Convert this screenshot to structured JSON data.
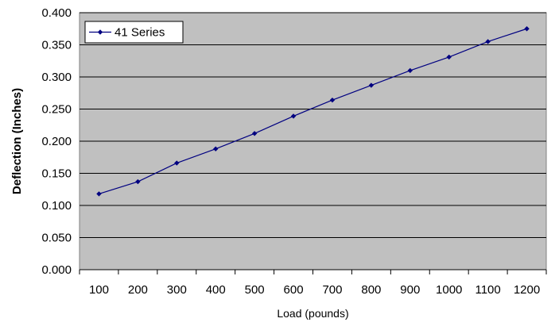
{
  "chart_data": {
    "type": "line",
    "title": "",
    "xlabel": "Load (pounds)",
    "ylabel": "Deflection (Inches)",
    "categories": [
      "100",
      "200",
      "300",
      "400",
      "500",
      "600",
      "700",
      "800",
      "900",
      "1000",
      "1100",
      "1200"
    ],
    "y_ticks": [
      "0.000",
      "0.050",
      "0.100",
      "0.150",
      "0.200",
      "0.250",
      "0.300",
      "0.350",
      "0.400"
    ],
    "ylim": [
      0,
      0.4
    ],
    "grid": true,
    "legend_position": "top-left",
    "series": [
      {
        "name": "41 Series",
        "color": "#000080",
        "values": [
          0.118,
          0.137,
          0.166,
          0.188,
          0.212,
          0.239,
          0.264,
          0.287,
          0.31,
          0.331,
          0.355,
          0.375
        ]
      }
    ],
    "plot_background": "#c0c0c0",
    "gridline_color": "#000000"
  }
}
